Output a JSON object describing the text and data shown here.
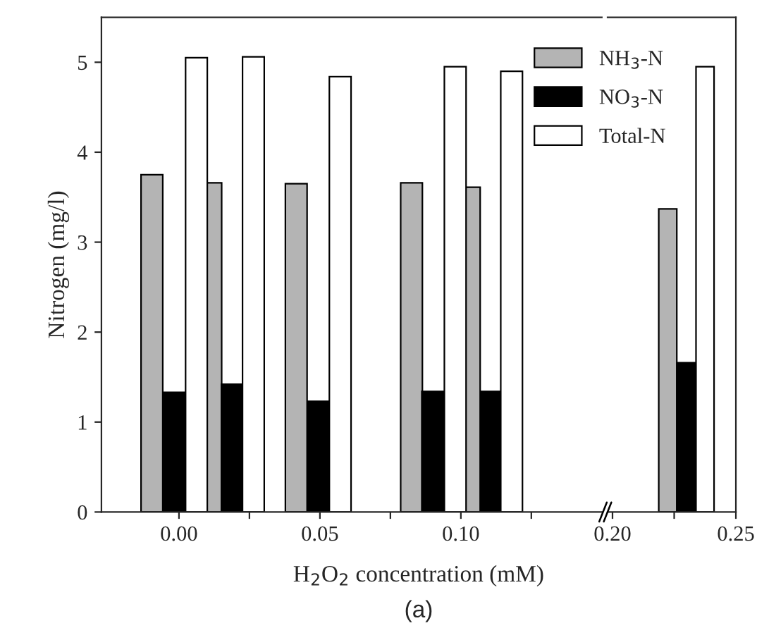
{
  "chart_data": [
    {
      "type": "bar",
      "ylabel": "Nitrogen (mg/l)",
      "xlabel": "H$_{2}$O$_{2}$ concentration (mM)",
      "annotations": [
        "(a)"
      ],
      "legend": "top right",
      "xlim": [
        -0.0275,
        0.15
      ],
      "xticks": [
        {
          "value": 0.0,
          "label": "0.00"
        },
        {
          "value": 0.025,
          "label": null
        },
        0.05,
        {
          "value": 0.075,
          "label": null
        },
        {
          "value": 0.1,
          "label": "0.10"
        },
        {
          "value": 0.125,
          "label": null
        }
      ],
      "ylim": [
        0,
        5.5
      ],
      "yticks": [
        0,
        1,
        2,
        3,
        4,
        5
      ],
      "series": [
        {
          "name": "NH$_{3}$-N",
          "color": "#b4b4b4",
          "x": [
            -0.0096,
            0.0113,
            0.0416,
            0.0825,
            0.103
          ],
          "values": [
            3.75,
            3.66,
            3.65,
            3.66,
            3.61
          ]
        },
        {
          "name": "NO$_{3}$-N",
          "color": "#000000",
          "x": [
            -0.0017,
            0.0189,
            0.0495,
            0.09,
            0.111
          ],
          "values": [
            1.33,
            1.42,
            1.23,
            1.34,
            1.34
          ]
        },
        {
          "name": "Total-N",
          "color": "#ffffff",
          "x": [
            0.0062,
            0.0264,
            0.0572,
            0.098,
            0.118
          ],
          "values": [
            5.05,
            5.06,
            4.84,
            4.95,
            4.9
          ]
        }
      ]
    },
    {
      "type": "bar",
      "tick_labels": "x",
      "xlim": [
        0.198,
        0.25
      ],
      "xticks": [
        {
          "value": 0.2,
          "label": "0.20"
        },
        {
          "value": 0.225,
          "label": null
        },
        0.25
      ],
      "ylim": [
        0,
        5.5
      ],
      "series": [
        {
          "color": "#b4b4b4",
          "x": [
            0.2224
          ],
          "values": [
            3.37
          ]
        },
        {
          "color": "#000000",
          "x": [
            0.2298
          ],
          "values": [
            1.66
          ]
        },
        {
          "color": "#ffffff",
          "x": [
            0.2375
          ],
          "values": [
            4.95
          ]
        }
      ]
    }
  ]
}
